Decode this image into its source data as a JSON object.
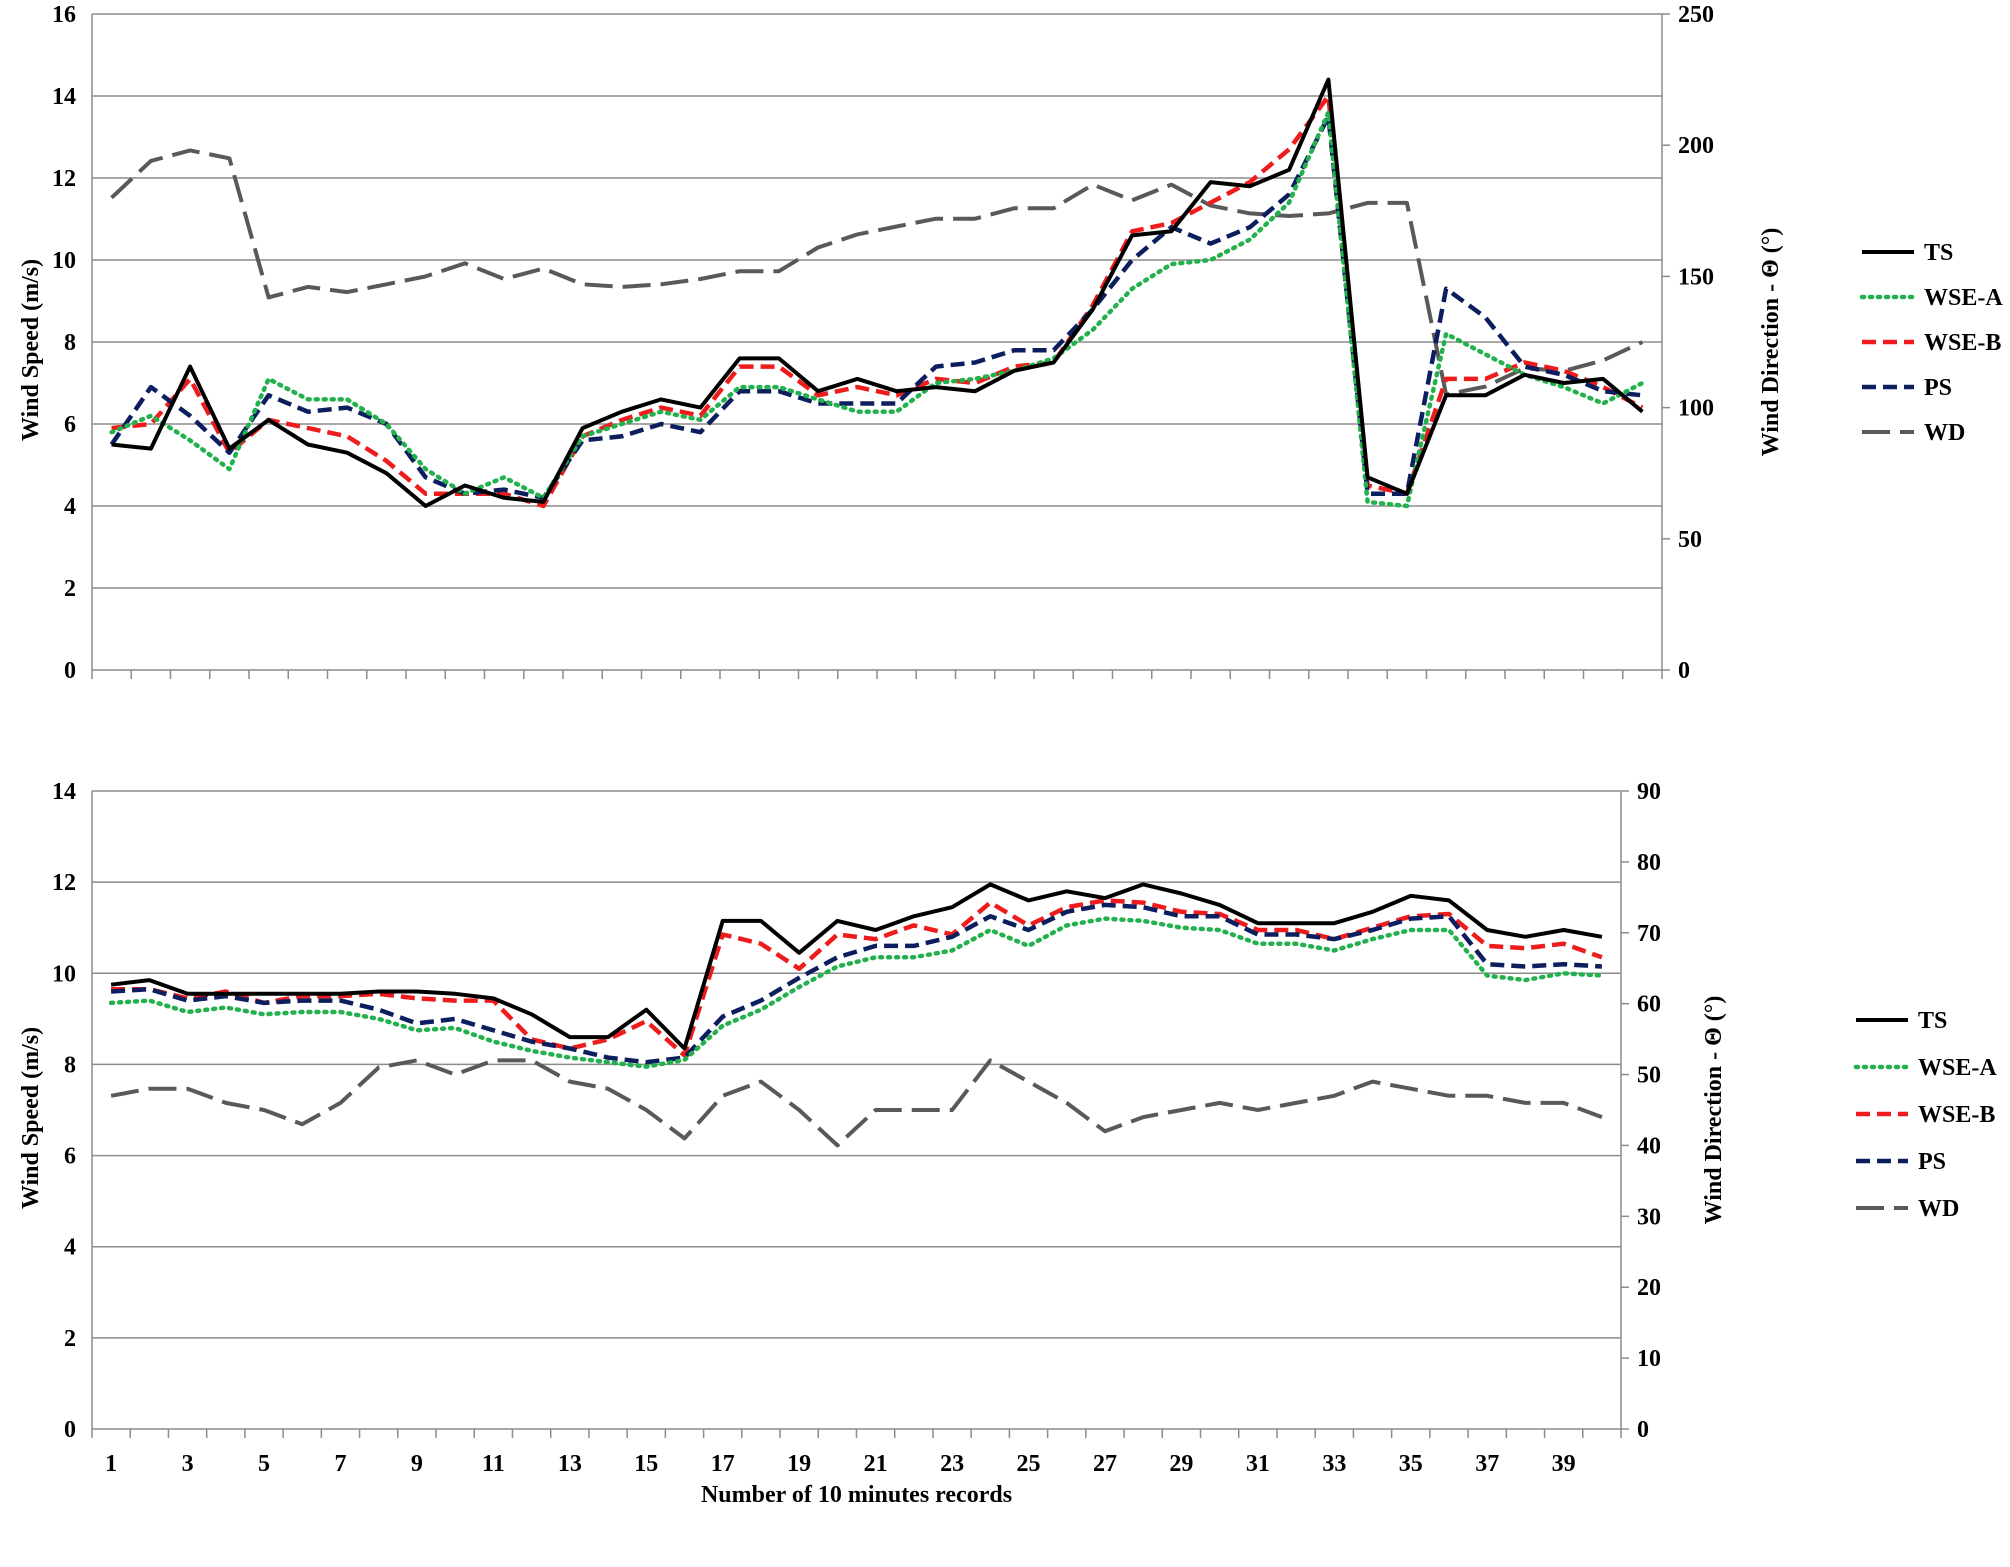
{
  "chart_data": [
    {
      "type": "line",
      "xlabel": "",
      "ylabel": "Wind Speed (m/s)",
      "y2label": "Wind Direction - Θ (°)",
      "ylim": [
        0,
        16
      ],
      "y2lim": [
        0,
        250
      ],
      "yticks": [
        "0",
        "2",
        "4",
        "6",
        "8",
        "10",
        "12",
        "14",
        "16"
      ],
      "y2ticks": [
        "0",
        "50",
        "100",
        "150",
        "200",
        "250"
      ],
      "xticks": [],
      "grid": true,
      "legend_position": "right",
      "x": [
        1,
        2,
        3,
        4,
        5,
        6,
        7,
        8,
        9,
        10,
        11,
        12,
        13,
        14,
        15,
        16,
        17,
        18,
        19,
        20,
        21,
        22,
        23,
        24,
        25,
        26,
        27,
        28,
        29,
        30,
        31,
        32,
        33,
        34,
        35,
        36,
        37,
        38,
        39,
        40
      ],
      "series": [
        {
          "name": "TS",
          "axis": "left",
          "color": "#000000",
          "style": "solid",
          "values": [
            5.5,
            5.4,
            7.4,
            5.4,
            6.1,
            5.5,
            5.3,
            4.8,
            4.0,
            4.5,
            4.2,
            4.1,
            5.9,
            6.3,
            6.6,
            6.4,
            7.6,
            7.6,
            6.8,
            7.1,
            6.8,
            6.9,
            6.8,
            7.3,
            7.5,
            8.8,
            10.6,
            10.7,
            11.9,
            11.8,
            12.2,
            14.4,
            4.7,
            4.3,
            6.7,
            6.7,
            7.2,
            7.0,
            7.1,
            6.3
          ]
        },
        {
          "name": "WSE-A",
          "axis": "left",
          "color": "#22b14c",
          "style": "dotted",
          "values": [
            5.8,
            6.2,
            5.6,
            4.9,
            7.1,
            6.6,
            6.6,
            6.0,
            4.9,
            4.3,
            4.7,
            4.2,
            5.7,
            6.0,
            6.3,
            6.1,
            6.9,
            6.9,
            6.6,
            6.3,
            6.3,
            7.0,
            7.1,
            7.3,
            7.6,
            8.3,
            9.3,
            9.9,
            10.0,
            10.5,
            11.4,
            13.6,
            4.1,
            4.0,
            8.2,
            7.7,
            7.2,
            6.9,
            6.5,
            7.0
          ]
        },
        {
          "name": "WSE-B",
          "axis": "left",
          "color": "#ee1c1c",
          "style": "dashed",
          "values": [
            5.9,
            6.0,
            7.1,
            5.3,
            6.1,
            5.9,
            5.7,
            5.1,
            4.3,
            4.3,
            4.3,
            4.0,
            5.7,
            6.1,
            6.4,
            6.2,
            7.4,
            7.4,
            6.7,
            6.9,
            6.7,
            7.1,
            7.0,
            7.4,
            7.5,
            8.9,
            10.7,
            10.9,
            11.4,
            11.9,
            12.7,
            14.0,
            4.5,
            4.3,
            7.1,
            7.1,
            7.5,
            7.3,
            6.9,
            6.4
          ]
        },
        {
          "name": "PS",
          "axis": "left",
          "color": "#0d1e5e",
          "style": "dashed",
          "values": [
            5.5,
            6.9,
            6.2,
            5.3,
            6.7,
            6.3,
            6.4,
            6.0,
            4.7,
            4.3,
            4.4,
            4.2,
            5.6,
            5.7,
            6.0,
            5.8,
            6.8,
            6.8,
            6.5,
            6.5,
            6.5,
            7.4,
            7.5,
            7.8,
            7.8,
            8.8,
            10.0,
            10.8,
            10.4,
            10.8,
            11.6,
            13.5,
            4.3,
            4.3,
            9.3,
            8.6,
            7.4,
            7.2,
            6.8,
            6.7
          ]
        },
        {
          "name": "WD",
          "axis": "right",
          "color": "#595959",
          "style": "longdash",
          "values": [
            180,
            194,
            198,
            195,
            142,
            146,
            144,
            147,
            150,
            155,
            149,
            153,
            147,
            146,
            147,
            149,
            152,
            152,
            161,
            166,
            169,
            172,
            172,
            176,
            176,
            185,
            179,
            185,
            177,
            174,
            173,
            174,
            178,
            178,
            105,
            108,
            115,
            114,
            118,
            125
          ]
        }
      ]
    },
    {
      "type": "line",
      "xlabel": "Number of 10 minutes records",
      "ylabel": "Wind Speed (m/s)",
      "y2label": "Wind Direction - Θ (°)",
      "ylim": [
        0,
        14
      ],
      "y2lim": [
        0,
        90
      ],
      "yticks": [
        "0",
        "2",
        "4",
        "6",
        "8",
        "10",
        "12",
        "14"
      ],
      "y2ticks": [
        "0",
        "10",
        "20",
        "30",
        "40",
        "50",
        "60",
        "70",
        "80",
        "90"
      ],
      "xticks": [
        "1",
        "3",
        "5",
        "7",
        "9",
        "11",
        "13",
        "15",
        "17",
        "19",
        "21",
        "23",
        "25",
        "27",
        "29",
        "31",
        "33",
        "35",
        "37",
        "39"
      ],
      "grid": true,
      "legend_position": "right",
      "x": [
        1,
        2,
        3,
        4,
        5,
        6,
        7,
        8,
        9,
        10,
        11,
        12,
        13,
        14,
        15,
        16,
        17,
        18,
        19,
        20,
        21,
        22,
        23,
        24,
        25,
        26,
        27,
        28,
        29,
        30,
        31,
        32,
        33,
        34,
        35,
        36,
        37,
        38,
        39,
        40
      ],
      "series": [
        {
          "name": "TS",
          "axis": "left",
          "color": "#000000",
          "style": "solid",
          "values": [
            9.75,
            9.85,
            9.55,
            9.55,
            9.55,
            9.55,
            9.55,
            9.6,
            9.6,
            9.55,
            9.45,
            9.1,
            8.6,
            8.6,
            9.2,
            8.35,
            11.15,
            11.15,
            10.45,
            11.15,
            10.95,
            11.25,
            11.45,
            11.95,
            11.6,
            11.8,
            11.65,
            11.95,
            11.75,
            11.5,
            11.1,
            11.1,
            11.1,
            11.35,
            11.7,
            11.6,
            10.95,
            10.8,
            10.95,
            10.8
          ]
        },
        {
          "name": "WSE-A",
          "axis": "left",
          "color": "#22b14c",
          "style": "dotted",
          "values": [
            9.35,
            9.4,
            9.15,
            9.25,
            9.1,
            9.15,
            9.15,
            9.0,
            8.75,
            8.8,
            8.5,
            8.3,
            8.15,
            8.05,
            7.95,
            8.1,
            8.85,
            9.2,
            9.7,
            10.15,
            10.35,
            10.35,
            10.5,
            10.95,
            10.6,
            11.05,
            11.2,
            11.15,
            11.0,
            10.95,
            10.65,
            10.65,
            10.5,
            10.75,
            10.95,
            10.95,
            9.95,
            9.85,
            10.0,
            9.95
          ]
        },
        {
          "name": "WSE-B",
          "axis": "left",
          "color": "#ee1c1c",
          "style": "dashed",
          "values": [
            9.65,
            9.65,
            9.45,
            9.6,
            9.35,
            9.5,
            9.5,
            9.55,
            9.45,
            9.4,
            9.4,
            8.55,
            8.35,
            8.55,
            8.95,
            8.2,
            10.85,
            10.65,
            10.1,
            10.85,
            10.75,
            11.05,
            10.85,
            11.55,
            11.05,
            11.45,
            11.6,
            11.55,
            11.35,
            11.3,
            10.95,
            10.95,
            10.75,
            11.0,
            11.25,
            11.3,
            10.6,
            10.55,
            10.65,
            10.35
          ]
        },
        {
          "name": "PS",
          "axis": "left",
          "color": "#0d1e5e",
          "style": "dashed",
          "values": [
            9.6,
            9.65,
            9.4,
            9.5,
            9.35,
            9.4,
            9.4,
            9.2,
            8.9,
            9.0,
            8.75,
            8.5,
            8.35,
            8.15,
            8.05,
            8.15,
            9.05,
            9.4,
            9.9,
            10.35,
            10.6,
            10.6,
            10.8,
            11.25,
            10.95,
            11.35,
            11.5,
            11.45,
            11.25,
            11.25,
            10.85,
            10.85,
            10.75,
            10.95,
            11.2,
            11.25,
            10.2,
            10.15,
            10.2,
            10.15
          ]
        },
        {
          "name": "WD",
          "axis": "right",
          "color": "#595959",
          "style": "longdash",
          "values": [
            47,
            48,
            48,
            46,
            45,
            43,
            46,
            51,
            52,
            50,
            52,
            52,
            49,
            48,
            45,
            41,
            47,
            49,
            45,
            40,
            45,
            45,
            45,
            52,
            49,
            46,
            42,
            44,
            45,
            46,
            45,
            46,
            47,
            49,
            48,
            47,
            47,
            46,
            46,
            44
          ]
        }
      ]
    }
  ]
}
